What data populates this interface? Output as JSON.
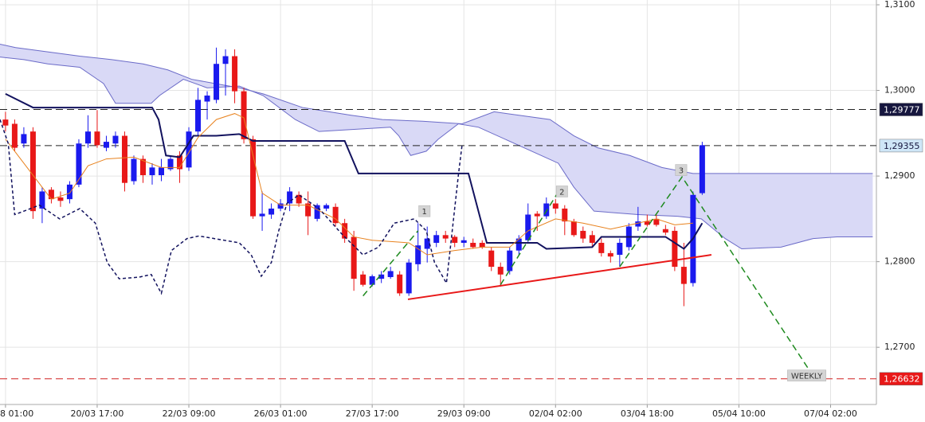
{
  "chart_data": {
    "type": "candlestick",
    "up_color": "#1a1aee",
    "down_color": "#e81818",
    "open": [
      1.2966,
      1.2961,
      1.2938,
      1.2952,
      1.2862,
      1.2884,
      1.2875,
      1.2873,
      1.289,
      1.2938,
      1.2952,
      1.2933,
      1.2938,
      1.2947,
      1.2894,
      1.292,
      1.2901,
      1.2901,
      1.2908,
      1.2924,
      1.291,
      1.2952,
      1.2987,
      1.2989,
      1.3031,
      1.304,
      1.2999,
      1.2943,
      1.2853,
      1.2855,
      1.2862,
      1.2868,
      1.2878,
      1.2868,
      1.285,
      1.2862,
      1.2864,
      1.2845,
      1.2829,
      1.2785,
      1.2773,
      1.278,
      1.2782,
      1.2785,
      1.2763,
      1.2797,
      1.2815,
      1.2822,
      1.2831,
      1.2829,
      1.2822,
      1.2822,
      1.2822,
      1.2813,
      1.2794,
      1.2789,
      1.2813,
      1.2825,
      1.2856,
      1.2853,
      1.2868,
      1.2862,
      1.2847,
      1.2836,
      1.2831,
      1.2822,
      1.281,
      1.2808,
      1.2817,
      1.2841,
      1.2847,
      1.285,
      1.2838,
      1.2836,
      1.2794,
      1.2775,
      1.288
    ],
    "high": [
      1.2975,
      1.2966,
      1.2957,
      1.2957,
      1.2887,
      1.2887,
      1.2882,
      1.2894,
      1.2943,
      1.2971,
      1.2977,
      1.2947,
      1.2952,
      1.2952,
      1.2924,
      1.2924,
      1.2915,
      1.292,
      1.2924,
      1.2929,
      1.2957,
      1.3003,
      1.2999,
      1.305,
      1.3048,
      1.3048,
      1.3003,
      1.2947,
      1.2882,
      1.2868,
      1.2873,
      1.2887,
      1.2882,
      1.2882,
      1.2868,
      1.2868,
      1.2868,
      1.285,
      1.2836,
      1.2789,
      1.2785,
      1.2789,
      1.2794,
      1.2789,
      1.2803,
      1.2845,
      1.2841,
      1.2836,
      1.2836,
      1.2831,
      1.2829,
      1.2827,
      1.2825,
      1.2817,
      1.2799,
      1.2817,
      1.2831,
      1.2868,
      1.2859,
      1.2875,
      1.2873,
      1.2866,
      1.285,
      1.2841,
      1.2836,
      1.2827,
      1.2813,
      1.2827,
      1.2845,
      1.2864,
      1.2855,
      1.2855,
      1.2843,
      1.2841,
      1.2822,
      1.2882,
      1.294
    ],
    "low": [
      1.2952,
      1.2929,
      1.2933,
      1.285,
      1.2845,
      1.2868,
      1.2864,
      1.2868,
      1.2887,
      1.2933,
      1.2933,
      1.2929,
      1.2933,
      1.2882,
      1.289,
      1.2892,
      1.289,
      1.2894,
      1.2906,
      1.2892,
      1.2906,
      1.2947,
      1.2966,
      1.2985,
      1.2994,
      1.2985,
      1.2938,
      1.285,
      1.2836,
      1.285,
      1.2859,
      1.2859,
      1.2864,
      1.2831,
      1.2847,
      1.2859,
      1.2841,
      1.2822,
      1.2766,
      1.2771,
      1.2771,
      1.2775,
      1.278,
      1.276,
      1.276,
      1.2789,
      1.2799,
      1.2817,
      1.2822,
      1.2817,
      1.2817,
      1.2815,
      1.2815,
      1.2789,
      1.2771,
      1.2785,
      1.2808,
      1.2822,
      1.2836,
      1.285,
      1.2856,
      1.2831,
      1.2829,
      1.2822,
      1.2817,
      1.2806,
      1.2799,
      1.2794,
      1.2813,
      1.2836,
      1.2841,
      1.2841,
      1.2831,
      1.2789,
      1.2748,
      1.2771,
      1.2878
    ],
    "close": [
      1.2959,
      1.2933,
      1.2949,
      1.2859,
      1.2882,
      1.2873,
      1.2871,
      1.289,
      1.2938,
      1.2952,
      1.2936,
      1.294,
      1.2947,
      1.2892,
      1.292,
      1.2901,
      1.291,
      1.291,
      1.292,
      1.2908,
      1.2952,
      1.2989,
      1.2994,
      1.3031,
      1.304,
      1.2999,
      1.2943,
      1.2853,
      1.2856,
      1.2862,
      1.2868,
      1.2882,
      1.2868,
      1.2853,
      1.2866,
      1.2866,
      1.2845,
      1.2827,
      1.278,
      1.2773,
      1.2783,
      1.2785,
      1.2789,
      1.2763,
      1.2799,
      1.2819,
      1.2827,
      1.2831,
      1.2827,
      1.2822,
      1.2825,
      1.2817,
      1.2817,
      1.2794,
      1.2785,
      1.2813,
      1.2827,
      1.2855,
      1.2853,
      1.2868,
      1.2862,
      1.2847,
      1.2831,
      1.2827,
      1.2822,
      1.281,
      1.2806,
      1.2822,
      1.2841,
      1.2847,
      1.2843,
      1.2843,
      1.2834,
      1.2794,
      1.2774,
      1.2878,
      1.2936
    ],
    "xlim": [
      -0.6,
      95
    ],
    "ylim": [
      1.26332,
      1.31056
    ],
    "xticks": [
      {
        "value": 0,
        "label": "8 01:00"
      },
      {
        "value": 10,
        "label": "20/03 17:00"
      },
      {
        "value": 20,
        "label": "22/03 09:00"
      },
      {
        "value": 30,
        "label": "26/03 01:00"
      },
      {
        "value": 40,
        "label": "27/03 17:00"
      },
      {
        "value": 50,
        "label": "29/03 09:00"
      },
      {
        "value": 60,
        "label": "02/04 02:00"
      },
      {
        "value": 70,
        "label": "03/04 18:00"
      },
      {
        "value": 80,
        "label": "05/04 10:00"
      },
      {
        "value": 90,
        "label": "07/04 02:00"
      }
    ],
    "yticks": [
      {
        "value": 1.31,
        "label": "1,3100"
      },
      {
        "value": 1.3,
        "label": "1,3000"
      },
      {
        "value": 1.29,
        "label": "1,2900"
      },
      {
        "value": 1.28,
        "label": "1,2800"
      },
      {
        "value": 1.27,
        "label": "1,2700"
      }
    ],
    "grid": true,
    "cloud": {
      "color": "#6b6bc8",
      "fill": "#d9d9f6",
      "x_upper": [
        -0.6,
        1.1,
        4.6,
        8.1,
        11.6,
        15,
        17.7,
        20.3,
        22.9,
        25.5,
        28.1,
        32.4,
        37.7,
        41.1,
        45.5,
        49.8,
        53.3,
        59.4,
        62,
        64.6,
        68.1,
        71.6,
        75,
        94.6
      ],
      "upper": [
        1.3054,
        1.305,
        1.3045,
        1.304,
        1.3036,
        1.3031,
        1.3024,
        1.3013,
        1.3008,
        1.3003,
        1.2996,
        1.298,
        1.2971,
        1.2966,
        1.2964,
        1.2961,
        1.2975,
        1.2966,
        1.2947,
        1.2933,
        1.2924,
        1.291,
        1.2903,
        1.2903
      ],
      "x_lower": [
        -0.6,
        2,
        4.6,
        8.1,
        10.7,
        12,
        15.9,
        16.8,
        19.4,
        22,
        25.5,
        28.1,
        31.6,
        34.2,
        42,
        42.9,
        44.2,
        45.9,
        47.2,
        49.4,
        51.6,
        60.3,
        62,
        64.2,
        69,
        73.3,
        75.9,
        78.5,
        80.3,
        84.6,
        88.1,
        90.7,
        94.6
      ],
      "lower": [
        1.3039,
        1.3036,
        1.3031,
        1.3027,
        1.3008,
        1.2985,
        1.2985,
        1.2994,
        1.3013,
        1.3003,
        1.3005,
        1.2994,
        1.2966,
        1.2952,
        1.2957,
        1.2947,
        1.2924,
        1.2929,
        1.2943,
        1.2961,
        1.2957,
        1.2915,
        1.2887,
        1.2859,
        1.2855,
        1.2853,
        1.285,
        1.2827,
        1.2815,
        1.2817,
        1.2827,
        1.2829,
        1.2829
      ]
    },
    "lines": [
      {
        "color": "#12125e",
        "width": 2,
        "dash": false,
        "x": [
          0,
          3,
          16,
          16.7,
          17.5,
          19,
          20.5,
          23,
          25.5,
          27,
          37,
          38.5,
          50.5,
          52.5,
          58,
          59,
          64,
          65,
          72,
          74,
          75,
          76
        ],
        "values": [
          1.2996,
          1.298,
          1.298,
          1.2966,
          1.2924,
          1.2922,
          1.2947,
          1.2947,
          1.2949,
          1.2941,
          1.2941,
          1.2903,
          1.2903,
          1.2822,
          1.2822,
          1.2815,
          1.2817,
          1.2829,
          1.2829,
          1.2815,
          1.2827,
          1.2845
        ]
      },
      {
        "color": "#e8821e",
        "width": 1,
        "dash": false,
        "x": [
          0,
          3,
          5,
          7,
          9,
          11,
          14,
          17,
          19,
          21,
          23,
          25,
          26,
          28,
          30,
          33,
          36,
          38,
          40,
          44,
          46,
          49,
          52,
          55,
          57,
          60,
          63,
          66,
          69,
          71,
          73,
          75
        ],
        "values": [
          1.2943,
          1.2901,
          1.2873,
          1.288,
          1.2912,
          1.292,
          1.2922,
          1.291,
          1.291,
          1.2945,
          1.2966,
          1.2973,
          1.2968,
          1.288,
          1.2866,
          1.2866,
          1.285,
          1.2829,
          1.2825,
          1.2822,
          1.2808,
          1.2813,
          1.2817,
          1.2817,
          1.2836,
          1.285,
          1.2845,
          1.2838,
          1.2845,
          1.285,
          1.2843,
          1.2845
        ]
      },
      {
        "color": "#12125e",
        "width": 1.5,
        "dash": true,
        "x": [
          -0.6,
          0.3,
          1,
          2,
          3.7,
          5.9,
          8.1,
          9.8,
          11.1,
          12.4,
          14.6,
          15.9,
          17,
          18.1,
          19.8,
          21.1,
          25.5,
          26.8,
          27.9,
          29,
          29.8,
          30.7,
          32,
          34.2,
          36.8,
          39,
          40.7,
          42.4,
          44.6,
          45.9,
          46.8,
          48.1,
          49.4,
          49.8
        ],
        "values": [
          1.2966,
          1.2938,
          1.2855,
          1.2859,
          1.2866,
          1.285,
          1.2862,
          1.2845,
          1.2799,
          1.278,
          1.2782,
          1.2785,
          1.2763,
          1.2813,
          1.2827,
          1.283,
          1.2822,
          1.2808,
          1.2783,
          1.2799,
          1.2836,
          1.2868,
          1.2878,
          1.2862,
          1.2831,
          1.2808,
          1.2817,
          1.2845,
          1.285,
          1.2836,
          1.2799,
          1.2775,
          1.2901,
          1.2936
        ]
      }
    ],
    "drawings": [
      {
        "color": "#1e8a1e",
        "dash": true,
        "x": [
          39,
          45
        ],
        "values": [
          1.276,
          1.2836
        ]
      },
      {
        "color": "#1e8a1e",
        "dash": true,
        "x": [
          54,
          60.1
        ],
        "values": [
          1.2773,
          1.2878
        ]
      },
      {
        "color": "#1e8a1e",
        "dash": true,
        "x": [
          67,
          73.8,
          87.7
        ],
        "values": [
          1.2794,
          1.2899,
          1.2673
        ]
      },
      {
        "color": "#e81818",
        "dash": false,
        "x": [
          43.9,
          77
        ],
        "values": [
          1.2756,
          1.2808
        ]
      }
    ],
    "levels": [
      {
        "value": 1.29777,
        "label": "1,29777",
        "color": "#222",
        "label_bg": "#16163e",
        "label_color": "#ffffff"
      },
      {
        "value": 1.29355,
        "label": "1,29355",
        "color": "#222",
        "label_bg": "#cfe6f7",
        "label_color": "#16163e"
      },
      {
        "value": 1.26632,
        "label": "1,26632",
        "color": "#d02020",
        "label_bg": "#e81818",
        "label_color": "#ffffff"
      }
    ],
    "annotations": [
      {
        "text": "1",
        "x": 45.7,
        "y": 1.2859
      },
      {
        "text": "2",
        "x": 60.7,
        "y": 1.2882
      },
      {
        "text": "3",
        "x": 73.7,
        "y": 1.2907
      },
      {
        "text": "WEEKLY",
        "x": 87.4,
        "y": 1.2667
      }
    ]
  }
}
